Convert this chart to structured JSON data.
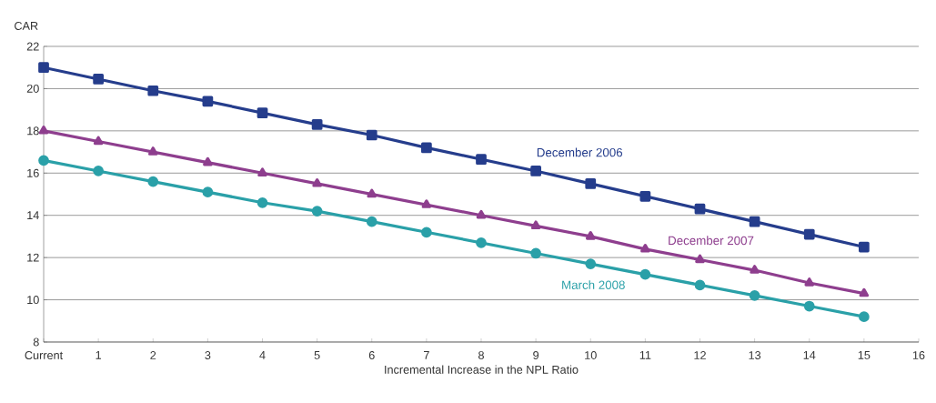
{
  "chart_data": {
    "type": "line",
    "ylabel": "CAR",
    "xlabel": "Incremental Increase in the NPL Ratio",
    "x": [
      0,
      1,
      2,
      3,
      4,
      5,
      6,
      7,
      8,
      9,
      10,
      11,
      12,
      13,
      14,
      15
    ],
    "xlim": [
      0,
      16
    ],
    "xticks": [
      {
        "value": 0,
        "label": "Current"
      },
      1,
      2,
      3,
      4,
      5,
      6,
      7,
      8,
      9,
      10,
      11,
      12,
      13,
      14,
      15,
      16
    ],
    "ylim": [
      8,
      22
    ],
    "yticks": [
      8,
      10,
      12,
      14,
      16,
      18,
      20,
      22
    ],
    "grid": "y",
    "legend": false,
    "series": [
      {
        "name": "December 2006",
        "color": "#253d8c",
        "marker": "square",
        "values": [
          21,
          20.45,
          19.9,
          19.4,
          18.85,
          18.3,
          17.8,
          17.2,
          16.65,
          16.1,
          15.5,
          14.9,
          14.3,
          13.7,
          13.1,
          12.5
        ]
      },
      {
        "name": "December 2007",
        "color": "#8e3e8e",
        "marker": "triangle",
        "values": [
          18,
          17.5,
          17.0,
          16.5,
          16.0,
          15.5,
          15.0,
          14.5,
          14.0,
          13.5,
          13.0,
          12.4,
          11.9,
          11.4,
          10.8,
          10.3
        ]
      },
      {
        "name": "March 2008",
        "color": "#2aa0a8",
        "marker": "circle",
        "values": [
          16.6,
          16.1,
          15.6,
          15.1,
          14.6,
          14.2,
          13.7,
          13.2,
          12.7,
          12.2,
          11.7,
          11.2,
          10.7,
          10.2,
          9.7,
          9.2
        ]
      }
    ]
  }
}
